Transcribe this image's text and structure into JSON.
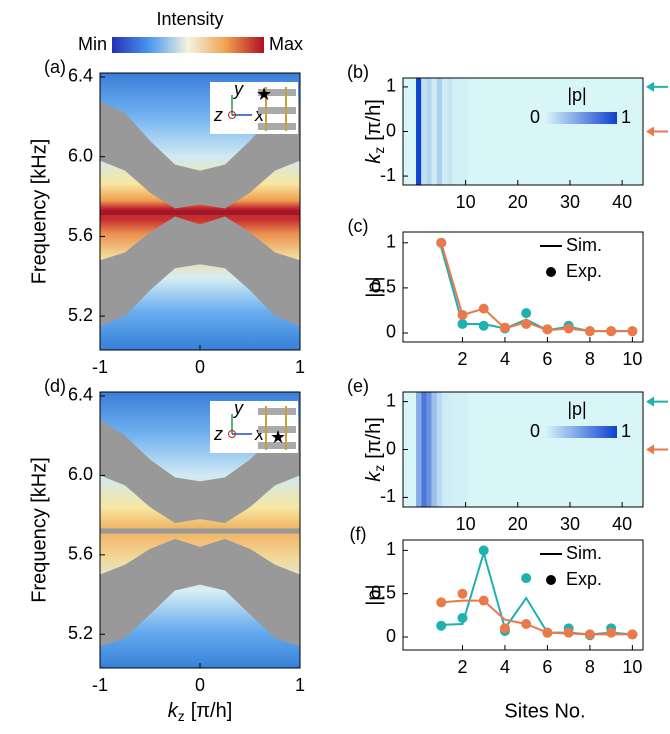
{
  "chart_data": [
    {
      "type": "colorbar",
      "label": "Intensity",
      "min_label": "Min",
      "max_label": "Max"
    },
    {
      "type": "band",
      "panel_label": "(a)",
      "ylabel": "Frequency [kHz]",
      "x": [
        -1,
        -0.75,
        -0.5,
        -0.25,
        0,
        0.25,
        0.5,
        0.75,
        1
      ],
      "series": [
        {
          "color": "#999999",
          "upper": [
            6.28,
            6.22,
            6.08,
            5.96,
            5.93,
            5.96,
            6.08,
            6.22,
            6.28
          ],
          "lower": [
            5.98,
            5.93,
            5.82,
            5.74,
            5.76,
            5.74,
            5.82,
            5.93,
            5.98
          ]
        },
        {
          "color": "#999999",
          "upper": [
            5.48,
            5.52,
            5.62,
            5.7,
            5.66,
            5.7,
            5.62,
            5.52,
            5.48
          ],
          "lower": [
            5.15,
            5.2,
            5.33,
            5.44,
            5.46,
            5.44,
            5.33,
            5.2,
            5.15
          ]
        }
      ],
      "edge_state": {
        "value": 5.72,
        "color": "#a01828"
      },
      "inset": {
        "y": "y",
        "z": "z",
        "x": "x"
      },
      "xlim": [
        -1,
        1
      ],
      "xticks": [
        -1,
        0,
        1
      ],
      "ylim": [
        5.03,
        6.42
      ],
      "yticks": [
        5.2,
        5.6,
        {
          "value": 6,
          "label": "6.0"
        },
        6.4
      ]
    },
    {
      "type": "heatmap",
      "panel_label": "(b)",
      "ylabel": {
        "symbol": "k",
        "subscript": "z",
        "unit": "[π/h]"
      },
      "x": [
        1,
        2,
        3,
        4,
        5,
        6,
        7,
        8,
        9,
        10
      ],
      "values": [
        1,
        0.12,
        0.18,
        0.06,
        0.22,
        0.06,
        0.09,
        0.04,
        0.03,
        0.03
      ],
      "colorbar": {
        "label": "|p|",
        "ticks": [
          0,
          1
        ]
      },
      "arrows": [
        {
          "value": 1,
          "color": "#1fb0b0"
        },
        {
          "value": 0,
          "color": "#ea7a4c"
        }
      ],
      "xlim": [
        -2,
        44
      ],
      "xticks": [
        10,
        20,
        30,
        40
      ],
      "ylim": [
        -1.2,
        1.2
      ],
      "yticks": [
        -1,
        0,
        1
      ]
    },
    {
      "type": "line",
      "panel_label": "(c)",
      "ylabel": "|p|",
      "legend": [
        "Sim.",
        "Exp."
      ],
      "x": [
        1,
        2,
        3,
        4,
        5,
        6,
        7,
        8,
        9,
        10
      ],
      "series": [
        {
          "color": "#1fb0b0",
          "mode": "line",
          "values": [
            0.95,
            0.1,
            0.1,
            0.05,
            0.15,
            0.03,
            0.07,
            0.02,
            0.02,
            0.02
          ]
        },
        {
          "color": "#1fb0b0",
          "mode": "markers",
          "values": [
            1,
            0.1,
            0.08,
            0.05,
            0.22,
            0.04,
            0.08,
            0.02,
            0.02,
            0.02
          ]
        },
        {
          "color": "#ea7a4c",
          "mode": "line",
          "values": [
            1,
            0.2,
            0.27,
            0.05,
            0.12,
            0.03,
            0.05,
            0.02,
            0.02,
            0.02
          ]
        },
        {
          "color": "#ea7a4c",
          "mode": "markers",
          "values": [
            1,
            0.2,
            0.27,
            0.06,
            0.1,
            0.04,
            0.05,
            0.02,
            0.02,
            0.02
          ]
        }
      ],
      "xlim": [
        -0.8,
        10.5
      ],
      "xticks": [
        2,
        4,
        6,
        8,
        10
      ],
      "ylim": [
        -0.1,
        1.12
      ],
      "yticks": [
        0,
        0.5,
        1
      ]
    },
    {
      "type": "band",
      "panel_label": "(d)",
      "ylabel": "Frequency [kHz]",
      "xlabel": {
        "symbol": "k",
        "subscript": "z",
        "unit": "[π/h]"
      },
      "x": [
        -1,
        -0.75,
        -0.5,
        -0.25,
        0,
        0.25,
        0.5,
        0.75,
        1
      ],
      "series": [
        {
          "color": "#999999",
          "upper": [
            6.28,
            6.2,
            6.08,
            5.99,
            5.97,
            5.99,
            6.08,
            6.2,
            6.28
          ],
          "lower": [
            6.0,
            5.95,
            5.84,
            5.76,
            5.78,
            5.76,
            5.84,
            5.95,
            6.0
          ]
        },
        {
          "color": "#999999",
          "upper": [
            5.5,
            5.55,
            5.63,
            5.68,
            5.64,
            5.68,
            5.63,
            5.55,
            5.5
          ],
          "lower": [
            5.14,
            5.18,
            5.3,
            5.42,
            5.45,
            5.42,
            5.3,
            5.18,
            5.14
          ]
        }
      ],
      "edge_state": {
        "value": 5.72,
        "color": "#999999"
      },
      "inset": {
        "y": "y",
        "z": "z",
        "x": "x"
      },
      "xlim": [
        -1,
        1
      ],
      "xticks": [
        -1,
        0,
        1
      ],
      "ylim": [
        5.03,
        6.42
      ],
      "yticks": [
        5.2,
        5.6,
        {
          "value": 6,
          "label": "6.0"
        },
        6.4
      ]
    },
    {
      "type": "heatmap",
      "panel_label": "(e)",
      "ylabel": {
        "symbol": "k",
        "subscript": "z",
        "unit": "[π/h]"
      },
      "x": [
        1,
        2,
        3,
        4,
        5,
        6,
        7,
        8,
        9,
        10
      ],
      "values": [
        0.4,
        0.7,
        0.55,
        0.3,
        0.15,
        0.06,
        0.05,
        0.03,
        0.03,
        0.03
      ],
      "colorbar": {
        "label": "|p|",
        "ticks": [
          0,
          1
        ]
      },
      "arrows": [
        {
          "value": 1,
          "color": "#1fb0b0"
        },
        {
          "value": 0,
          "color": "#ea7a4c"
        }
      ],
      "xlim": [
        -2,
        44
      ],
      "xticks": [
        10,
        20,
        30,
        40
      ],
      "ylim": [
        -1.2,
        1.2
      ],
      "yticks": [
        -1,
        0,
        1
      ]
    },
    {
      "type": "line",
      "panel_label": "(f)",
      "ylabel": "|p|",
      "xlabel": "Sites No.",
      "legend": [
        "Sim.",
        "Exp."
      ],
      "x": [
        1,
        2,
        3,
        4,
        5,
        6,
        7,
        8,
        9,
        10
      ],
      "series": [
        {
          "color": "#1fb0b0",
          "mode": "line",
          "values": [
            0.14,
            0.15,
            0.97,
            0.1,
            0.45,
            0.05,
            0.05,
            0.03,
            0.05,
            0.03
          ]
        },
        {
          "color": "#1fb0b0",
          "mode": "markers",
          "values": [
            0.13,
            0.22,
            1,
            0.07,
            0.68,
            0.05,
            0.1,
            0.02,
            0.1,
            0.03
          ]
        },
        {
          "color": "#ea7a4c",
          "mode": "line",
          "values": [
            0.4,
            0.42,
            0.42,
            0.2,
            0.15,
            0.05,
            0.04,
            0.03,
            0.03,
            0.03
          ]
        },
        {
          "color": "#ea7a4c",
          "mode": "markers",
          "values": [
            0.4,
            0.5,
            0.42,
            0.1,
            0.15,
            0.05,
            0.05,
            0.03,
            0.05,
            0.03
          ]
        }
      ],
      "xlim": [
        -0.8,
        10.5
      ],
      "xticks": [
        2,
        4,
        6,
        8,
        10
      ],
      "ylim": [
        -0.15,
        1.12
      ],
      "yticks": [
        0,
        0.5,
        1
      ]
    }
  ]
}
